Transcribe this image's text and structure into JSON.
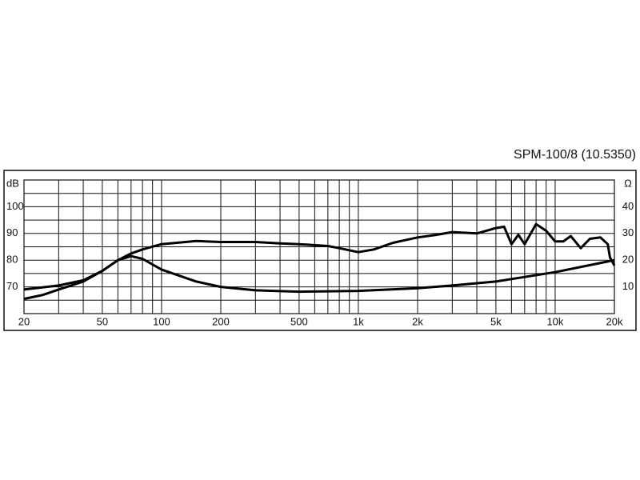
{
  "chart_data": {
    "type": "line",
    "title": "SPM-100/8 (10.5350)",
    "y_label": "dB",
    "y2_label": "Ω",
    "xscale": "log",
    "grid": true,
    "xlim": [
      20,
      20000
    ],
    "xticks": [
      20,
      50,
      100,
      200,
      500,
      {
        "value": 1000,
        "label": "1k"
      },
      {
        "value": 2000,
        "label": "2k"
      },
      {
        "value": 5000,
        "label": "5k"
      },
      {
        "value": 10000,
        "label": "10k"
      },
      {
        "value": 20000,
        "label": "20k"
      }
    ],
    "minor_xticks": [
      30,
      40,
      60,
      70,
      80,
      90,
      300,
      400,
      600,
      700,
      800,
      900,
      3000,
      4000,
      6000,
      7000,
      8000,
      9000
    ],
    "ylim": [
      60,
      110
    ],
    "yticks": [
      70,
      80,
      90,
      100
    ],
    "minor_yticks": [
      65,
      75,
      85,
      95,
      105,
      110
    ],
    "y2lim": [
      0,
      50
    ],
    "y2ticks": [
      10,
      20,
      30,
      40
    ],
    "series": [
      {
        "color": "#000000",
        "x": [
          20,
          25,
          30,
          40,
          50,
          60,
          70,
          80,
          100,
          150,
          200,
          300,
          400,
          500,
          700,
          800,
          1000,
          1200,
          1500,
          2000,
          2500,
          3000,
          4000,
          5000,
          5500,
          6000,
          6500,
          7000,
          8000,
          9000,
          10000,
          11000,
          12000,
          13500,
          15000,
          17000,
          18500,
          19000,
          20000
        ],
        "values": [
          65.5,
          67,
          69,
          72,
          76,
          80,
          82.5,
          84,
          86,
          87.2,
          86.8,
          86.8,
          86.3,
          86,
          85.3,
          84.5,
          83,
          84,
          86.5,
          88.5,
          89.5,
          90.5,
          90,
          92,
          92.5,
          86,
          89.5,
          86,
          93.5,
          91,
          87,
          87,
          89,
          84.5,
          88,
          88.5,
          86,
          81,
          78
        ]
      },
      {
        "color": "#000000",
        "axis": "y2",
        "x": [
          20,
          30,
          40,
          50,
          60,
          70,
          80,
          100,
          150,
          200,
          300,
          500,
          1000,
          2000,
          3000,
          5000,
          10000,
          20000
        ],
        "values": [
          9,
          10.5,
          12.5,
          16,
          20,
          21.5,
          20.5,
          16.5,
          12,
          10,
          8.7,
          8.2,
          8.5,
          9.5,
          10.5,
          12,
          15.5,
          20
        ]
      }
    ]
  }
}
